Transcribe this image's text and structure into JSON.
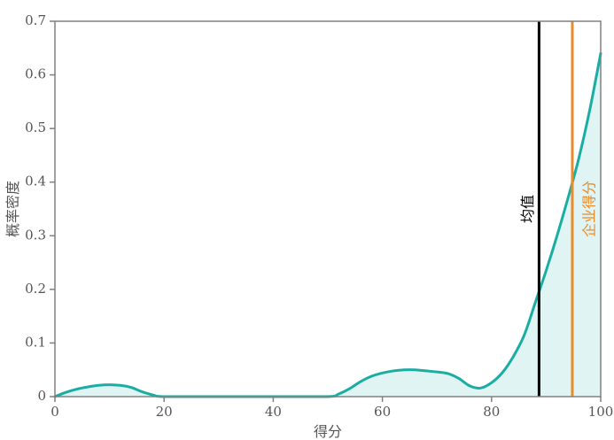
{
  "chart_data": {
    "type": "area",
    "xlabel": "得分",
    "ylabel": "概率密度",
    "xlim": [
      0,
      100
    ],
    "ylim": [
      0,
      0.7
    ],
    "x_ticks": [
      0,
      20,
      40,
      60,
      80,
      100
    ],
    "y_ticks": [
      0,
      0.1,
      0.2,
      0.3,
      0.4,
      0.5,
      0.6,
      0.7
    ],
    "x_tick_labels": [
      "0",
      "20",
      "40",
      "60",
      "80",
      "100"
    ],
    "y_tick_labels": [
      "0",
      "0.1",
      "0.2",
      "0.3",
      "0.4",
      "0.5",
      "0.6",
      "0.7"
    ],
    "grid": false,
    "series": [
      {
        "color": "#1aada3",
        "fill": "#dff4f3",
        "points": [
          [
            0,
            0.0
          ],
          [
            2,
            0.008
          ],
          [
            4,
            0.014
          ],
          [
            6,
            0.018
          ],
          [
            8,
            0.021
          ],
          [
            10,
            0.022
          ],
          [
            12,
            0.021
          ],
          [
            14,
            0.017
          ],
          [
            16,
            0.009
          ],
          [
            18,
            0.003
          ],
          [
            20,
            0.0
          ],
          [
            30,
            0.0
          ],
          [
            40,
            0.0
          ],
          [
            50,
            0.0
          ],
          [
            52,
            0.005
          ],
          [
            54,
            0.015
          ],
          [
            56,
            0.028
          ],
          [
            58,
            0.038
          ],
          [
            60,
            0.044
          ],
          [
            62,
            0.048
          ],
          [
            64,
            0.05
          ],
          [
            66,
            0.05
          ],
          [
            68,
            0.048
          ],
          [
            70,
            0.046
          ],
          [
            72,
            0.043
          ],
          [
            74,
            0.034
          ],
          [
            76,
            0.02
          ],
          [
            78,
            0.016
          ],
          [
            80,
            0.026
          ],
          [
            82,
            0.045
          ],
          [
            84,
            0.075
          ],
          [
            86,
            0.115
          ],
          [
            88,
            0.175
          ],
          [
            90,
            0.235
          ],
          [
            92,
            0.3
          ],
          [
            94,
            0.37
          ],
          [
            96,
            0.445
          ],
          [
            98,
            0.535
          ],
          [
            100,
            0.64
          ]
        ]
      }
    ],
    "markers": [
      {
        "label": "均值",
        "x": 88.7,
        "color": "#000000"
      },
      {
        "label": "企业得分",
        "x": 94.8,
        "color": "#e88c2e"
      }
    ]
  }
}
